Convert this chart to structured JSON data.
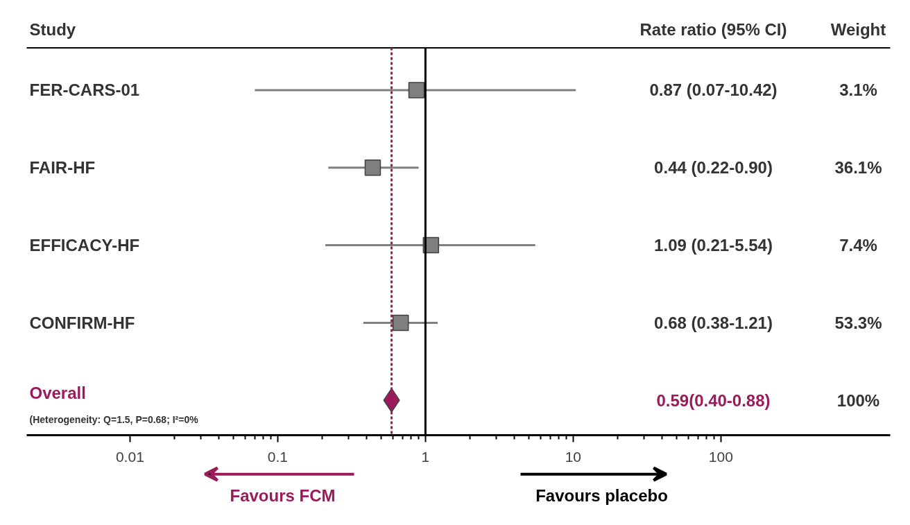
{
  "chart_data": {
    "type": "scatter",
    "orientation": "horizontal",
    "log": "x",
    "ylabel": "Study",
    "categories": [
      "FER-CARS-01",
      "FAIR-HF",
      "EFFICACY-HF",
      "CONFIRM-HF",
      "Overall"
    ],
    "xlim": [
      0.002,
      1400
    ],
    "xticks": [
      0.01,
      0.1,
      1,
      10,
      100
    ],
    "series": [
      {
        "marker": "square",
        "color": "#7f7f7f",
        "values": [
          0.87,
          0.44,
          1.09,
          0.68,
          null
        ],
        "errors": [
          [
            0.07,
            10.42
          ],
          [
            0.22,
            0.9
          ],
          [
            0.21,
            5.54
          ],
          [
            0.38,
            1.21
          ],
          null
        ]
      },
      {
        "marker": "diamond",
        "color": "#9b1b5a",
        "values": [
          null,
          null,
          null,
          null,
          0.59
        ]
      }
    ],
    "ref_lines": [
      {
        "axis": "x",
        "value": 1,
        "color": "#000000",
        "line_style": "solid"
      },
      {
        "axis": "x",
        "value": 0.59,
        "color": "#9b1b5a",
        "line_style": "dashed"
      }
    ],
    "annotations": [
      "Rate ratio (95% CI)",
      "Weight",
      "0.87 (0.07-10.42)",
      "0.44 (0.22-0.90)",
      "1.09 (0.21-5.54)",
      "0.68 (0.38-1.21)",
      "0.59(0.40-0.88)",
      "3.1%",
      "36.1%",
      "7.4%",
      "53.3%",
      "100%",
      "(Heterogeneity: Q=1.5, P=0.68; I²=0%",
      "Favours FCM",
      "Favours placebo"
    ]
  }
}
